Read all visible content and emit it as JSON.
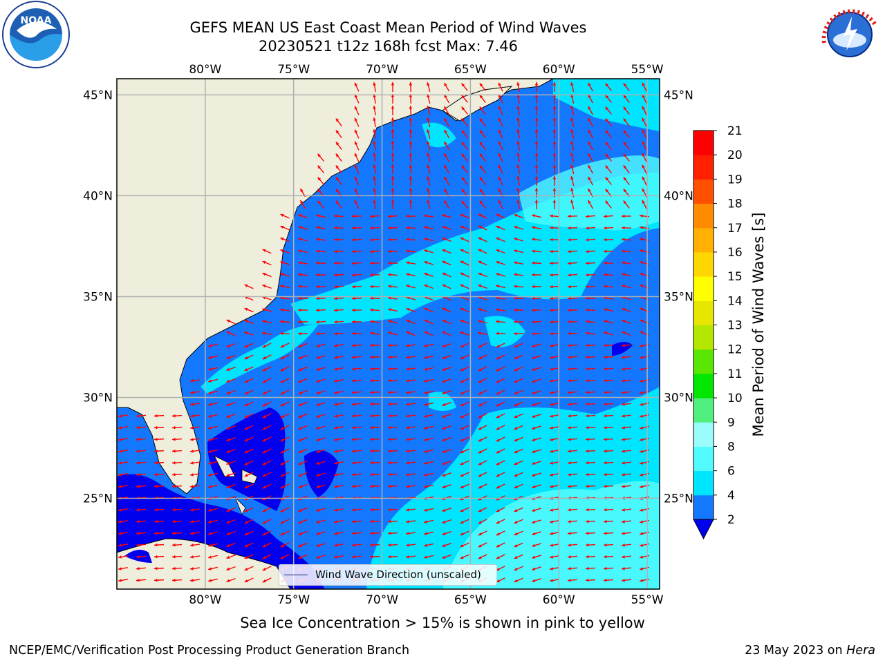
{
  "title": {
    "line1": "GEFS MEAN US East Coast Mean Period of Wind Waves",
    "line2": "20230521 t12z 168h fcst   Max: 7.46"
  },
  "logos": {
    "left": {
      "icon": "noaa-logo",
      "text": "NOAA"
    },
    "right": {
      "icon": "nws-logo",
      "text": "NATIONAL WEATHER SERVICE"
    }
  },
  "map": {
    "lon_labels": [
      "80°W",
      "75°W",
      "70°W",
      "65°W",
      "60°W",
      "55°W"
    ],
    "lon_values": [
      -80,
      -75,
      -70,
      -65,
      -60,
      -55
    ],
    "lat_labels": [
      "45°N",
      "40°N",
      "35°N",
      "30°N",
      "25°N"
    ],
    "lat_values": [
      45,
      40,
      35,
      30,
      25
    ],
    "extent": {
      "lon_min": -85,
      "lon_max": -54.3,
      "lat_min": 20.5,
      "lat_max": 45.8
    },
    "land_color": "#efeedc",
    "ocean_colors": {
      "2-4": "#1478ff",
      "4-6": "#00e5ff",
      "6-8": "#50fafd",
      "<2": "#0000ee"
    },
    "arrow_color": "#ff0000",
    "grid_color": "#b0b0b0",
    "legend": {
      "label": "Wind Wave Direction (unscaled)"
    }
  },
  "colorbar": {
    "title": "Mean Period of Wind Waves [s]",
    "levels": [
      "2",
      "4",
      "6",
      "8",
      "9",
      "10",
      "11",
      "12",
      "13",
      "14",
      "15",
      "16",
      "17",
      "18",
      "19",
      "20",
      "21"
    ],
    "colors": [
      "#0000ee",
      "#1478ff",
      "#00e5ff",
      "#50fafd",
      "#9bfcfc",
      "#50f080",
      "#00e600",
      "#5ae600",
      "#b4e600",
      "#e6e600",
      "#ffff00",
      "#ffd700",
      "#ffb000",
      "#ff8c00",
      "#ff5000",
      "#ff2000",
      "#ff0000"
    ]
  },
  "notes": {
    "ice": "Sea Ice Concentration > 15% is shown in pink to yellow",
    "footer_left": "NCEP/EMC/Verification Post Processing Product Generation Branch",
    "footer_date": "23 May 2023 on ",
    "footer_machine": "Hera"
  }
}
